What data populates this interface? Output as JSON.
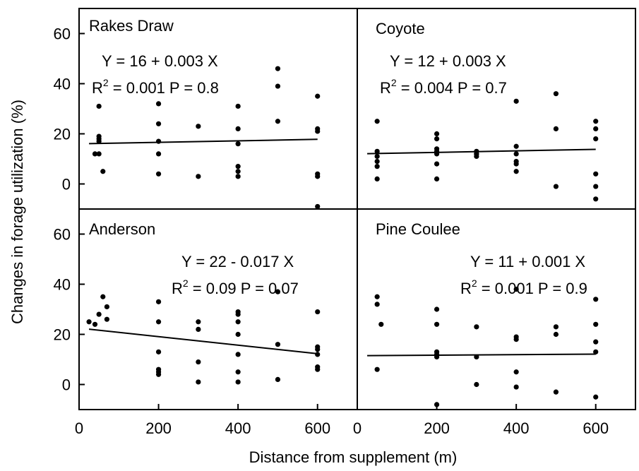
{
  "chart_data": {
    "type": "scatter",
    "xlabel": "Distance from supplement (m)",
    "ylabel": "Changes in forage utilization (%)",
    "xlim": [
      0,
      700
    ],
    "ylim": [
      -10,
      70
    ],
    "xticks": [
      "0",
      "200",
      "400",
      "600"
    ],
    "yticks": [
      "0",
      "20",
      "40",
      "60"
    ],
    "xtick_values": [
      0,
      200,
      400,
      600
    ],
    "ytick_values": [
      0,
      20,
      40,
      60
    ],
    "panels": [
      {
        "name": "Rakes Draw",
        "equation": "Y = 16 + 0.003 X",
        "r2_prefix": "R",
        "r2_sup": "2",
        "r2_value": " = 0.001",
        "p_text": "P = 0.8",
        "regression": {
          "intercept": 16,
          "slope": 0.003
        },
        "points": [
          [
            50,
            31
          ],
          [
            50,
            19
          ],
          [
            50,
            18
          ],
          [
            50,
            17
          ],
          [
            40,
            12
          ],
          [
            50,
            12
          ],
          [
            60,
            5
          ],
          [
            200,
            32
          ],
          [
            200,
            24
          ],
          [
            200,
            17
          ],
          [
            200,
            12
          ],
          [
            200,
            4
          ],
          [
            300,
            23
          ],
          [
            300,
            3
          ],
          [
            400,
            31
          ],
          [
            400,
            22
          ],
          [
            400,
            16
          ],
          [
            400,
            7
          ],
          [
            400,
            5
          ],
          [
            400,
            3
          ],
          [
            500,
            46
          ],
          [
            500,
            39
          ],
          [
            500,
            25
          ],
          [
            600,
            35
          ],
          [
            600,
            22
          ],
          [
            600,
            21
          ],
          [
            600,
            4
          ],
          [
            600,
            3
          ],
          [
            600,
            -9
          ]
        ]
      },
      {
        "name": "Coyote",
        "equation": "Y = 12 + 0.003 X",
        "r2_prefix": "R",
        "r2_sup": "2",
        "r2_value": " = 0.004",
        "p_text": "P = 0.7",
        "regression": {
          "intercept": 12,
          "slope": 0.003
        },
        "points": [
          [
            50,
            25
          ],
          [
            50,
            13
          ],
          [
            50,
            11
          ],
          [
            50,
            9
          ],
          [
            50,
            7
          ],
          [
            50,
            2
          ],
          [
            200,
            20
          ],
          [
            200,
            18
          ],
          [
            200,
            14
          ],
          [
            200,
            13
          ],
          [
            200,
            12
          ],
          [
            200,
            8
          ],
          [
            200,
            2
          ],
          [
            300,
            13
          ],
          [
            300,
            12
          ],
          [
            300,
            12
          ],
          [
            300,
            11
          ],
          [
            400,
            33
          ],
          [
            400,
            15
          ],
          [
            400,
            12
          ],
          [
            400,
            9
          ],
          [
            400,
            8
          ],
          [
            400,
            5
          ],
          [
            500,
            36
          ],
          [
            500,
            22
          ],
          [
            500,
            -1
          ],
          [
            600,
            25
          ],
          [
            600,
            22
          ],
          [
            600,
            18
          ],
          [
            600,
            4
          ],
          [
            600,
            -1
          ],
          [
            600,
            -6
          ]
        ]
      },
      {
        "name": "Anderson",
        "equation": "Y = 22 - 0.017 X",
        "r2_prefix": "R",
        "r2_sup": "2",
        "r2_value": " = 0.09",
        "p_text": "P = 0.07",
        "regression": {
          "intercept": 22.5,
          "slope": -0.017
        },
        "points": [
          [
            25,
            25
          ],
          [
            40,
            24
          ],
          [
            50,
            28
          ],
          [
            60,
            35
          ],
          [
            70,
            31
          ],
          [
            70,
            26
          ],
          [
            200,
            33
          ],
          [
            200,
            25
          ],
          [
            200,
            13
          ],
          [
            200,
            6
          ],
          [
            200,
            5
          ],
          [
            200,
            4
          ],
          [
            300,
            25
          ],
          [
            300,
            22
          ],
          [
            300,
            9
          ],
          [
            300,
            1
          ],
          [
            400,
            29
          ],
          [
            400,
            28
          ],
          [
            400,
            25
          ],
          [
            400,
            20
          ],
          [
            400,
            12
          ],
          [
            400,
            5
          ],
          [
            400,
            1
          ],
          [
            500,
            37
          ],
          [
            500,
            16
          ],
          [
            500,
            2
          ],
          [
            600,
            29
          ],
          [
            600,
            15
          ],
          [
            600,
            14
          ],
          [
            600,
            12
          ],
          [
            600,
            7
          ],
          [
            600,
            6
          ]
        ]
      },
      {
        "name": "Pine Coulee",
        "equation": "Y = 11 + 0.001 X",
        "r2_prefix": "R",
        "r2_sup": "2",
        "r2_value": " = 0.001",
        "p_text": "P = 0.9",
        "regression": {
          "intercept": 11.5,
          "slope": 0.001
        },
        "points": [
          [
            50,
            35
          ],
          [
            50,
            32
          ],
          [
            60,
            24
          ],
          [
            50,
            6
          ],
          [
            200,
            30
          ],
          [
            200,
            24
          ],
          [
            200,
            13
          ],
          [
            200,
            12
          ],
          [
            200,
            11
          ],
          [
            200,
            -8
          ],
          [
            300,
            23
          ],
          [
            300,
            11
          ],
          [
            300,
            0
          ],
          [
            400,
            38
          ],
          [
            400,
            19
          ],
          [
            400,
            18
          ],
          [
            400,
            5
          ],
          [
            400,
            -1
          ],
          [
            500,
            23
          ],
          [
            500,
            20
          ],
          [
            500,
            -3
          ],
          [
            600,
            34
          ],
          [
            600,
            24
          ],
          [
            600,
            17
          ],
          [
            600,
            13
          ],
          [
            600,
            -5
          ]
        ]
      }
    ]
  }
}
